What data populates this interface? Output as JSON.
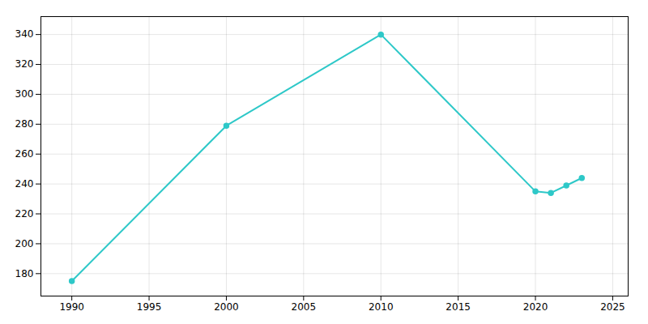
{
  "chart_data": {
    "type": "line",
    "x": [
      1990,
      2000,
      2010,
      2020,
      2021,
      2022,
      2023
    ],
    "values": [
      175,
      279,
      340,
      235,
      234,
      239,
      244
    ],
    "color": "#2EC8C8",
    "marker": "circle",
    "xlim": [
      1988,
      2026
    ],
    "ylim": [
      165,
      352
    ],
    "xticks": [
      1990,
      1995,
      2000,
      2005,
      2010,
      2015,
      2020,
      2025
    ],
    "yticks": [
      180,
      200,
      220,
      240,
      260,
      280,
      300,
      320,
      340
    ],
    "grid": true
  }
}
